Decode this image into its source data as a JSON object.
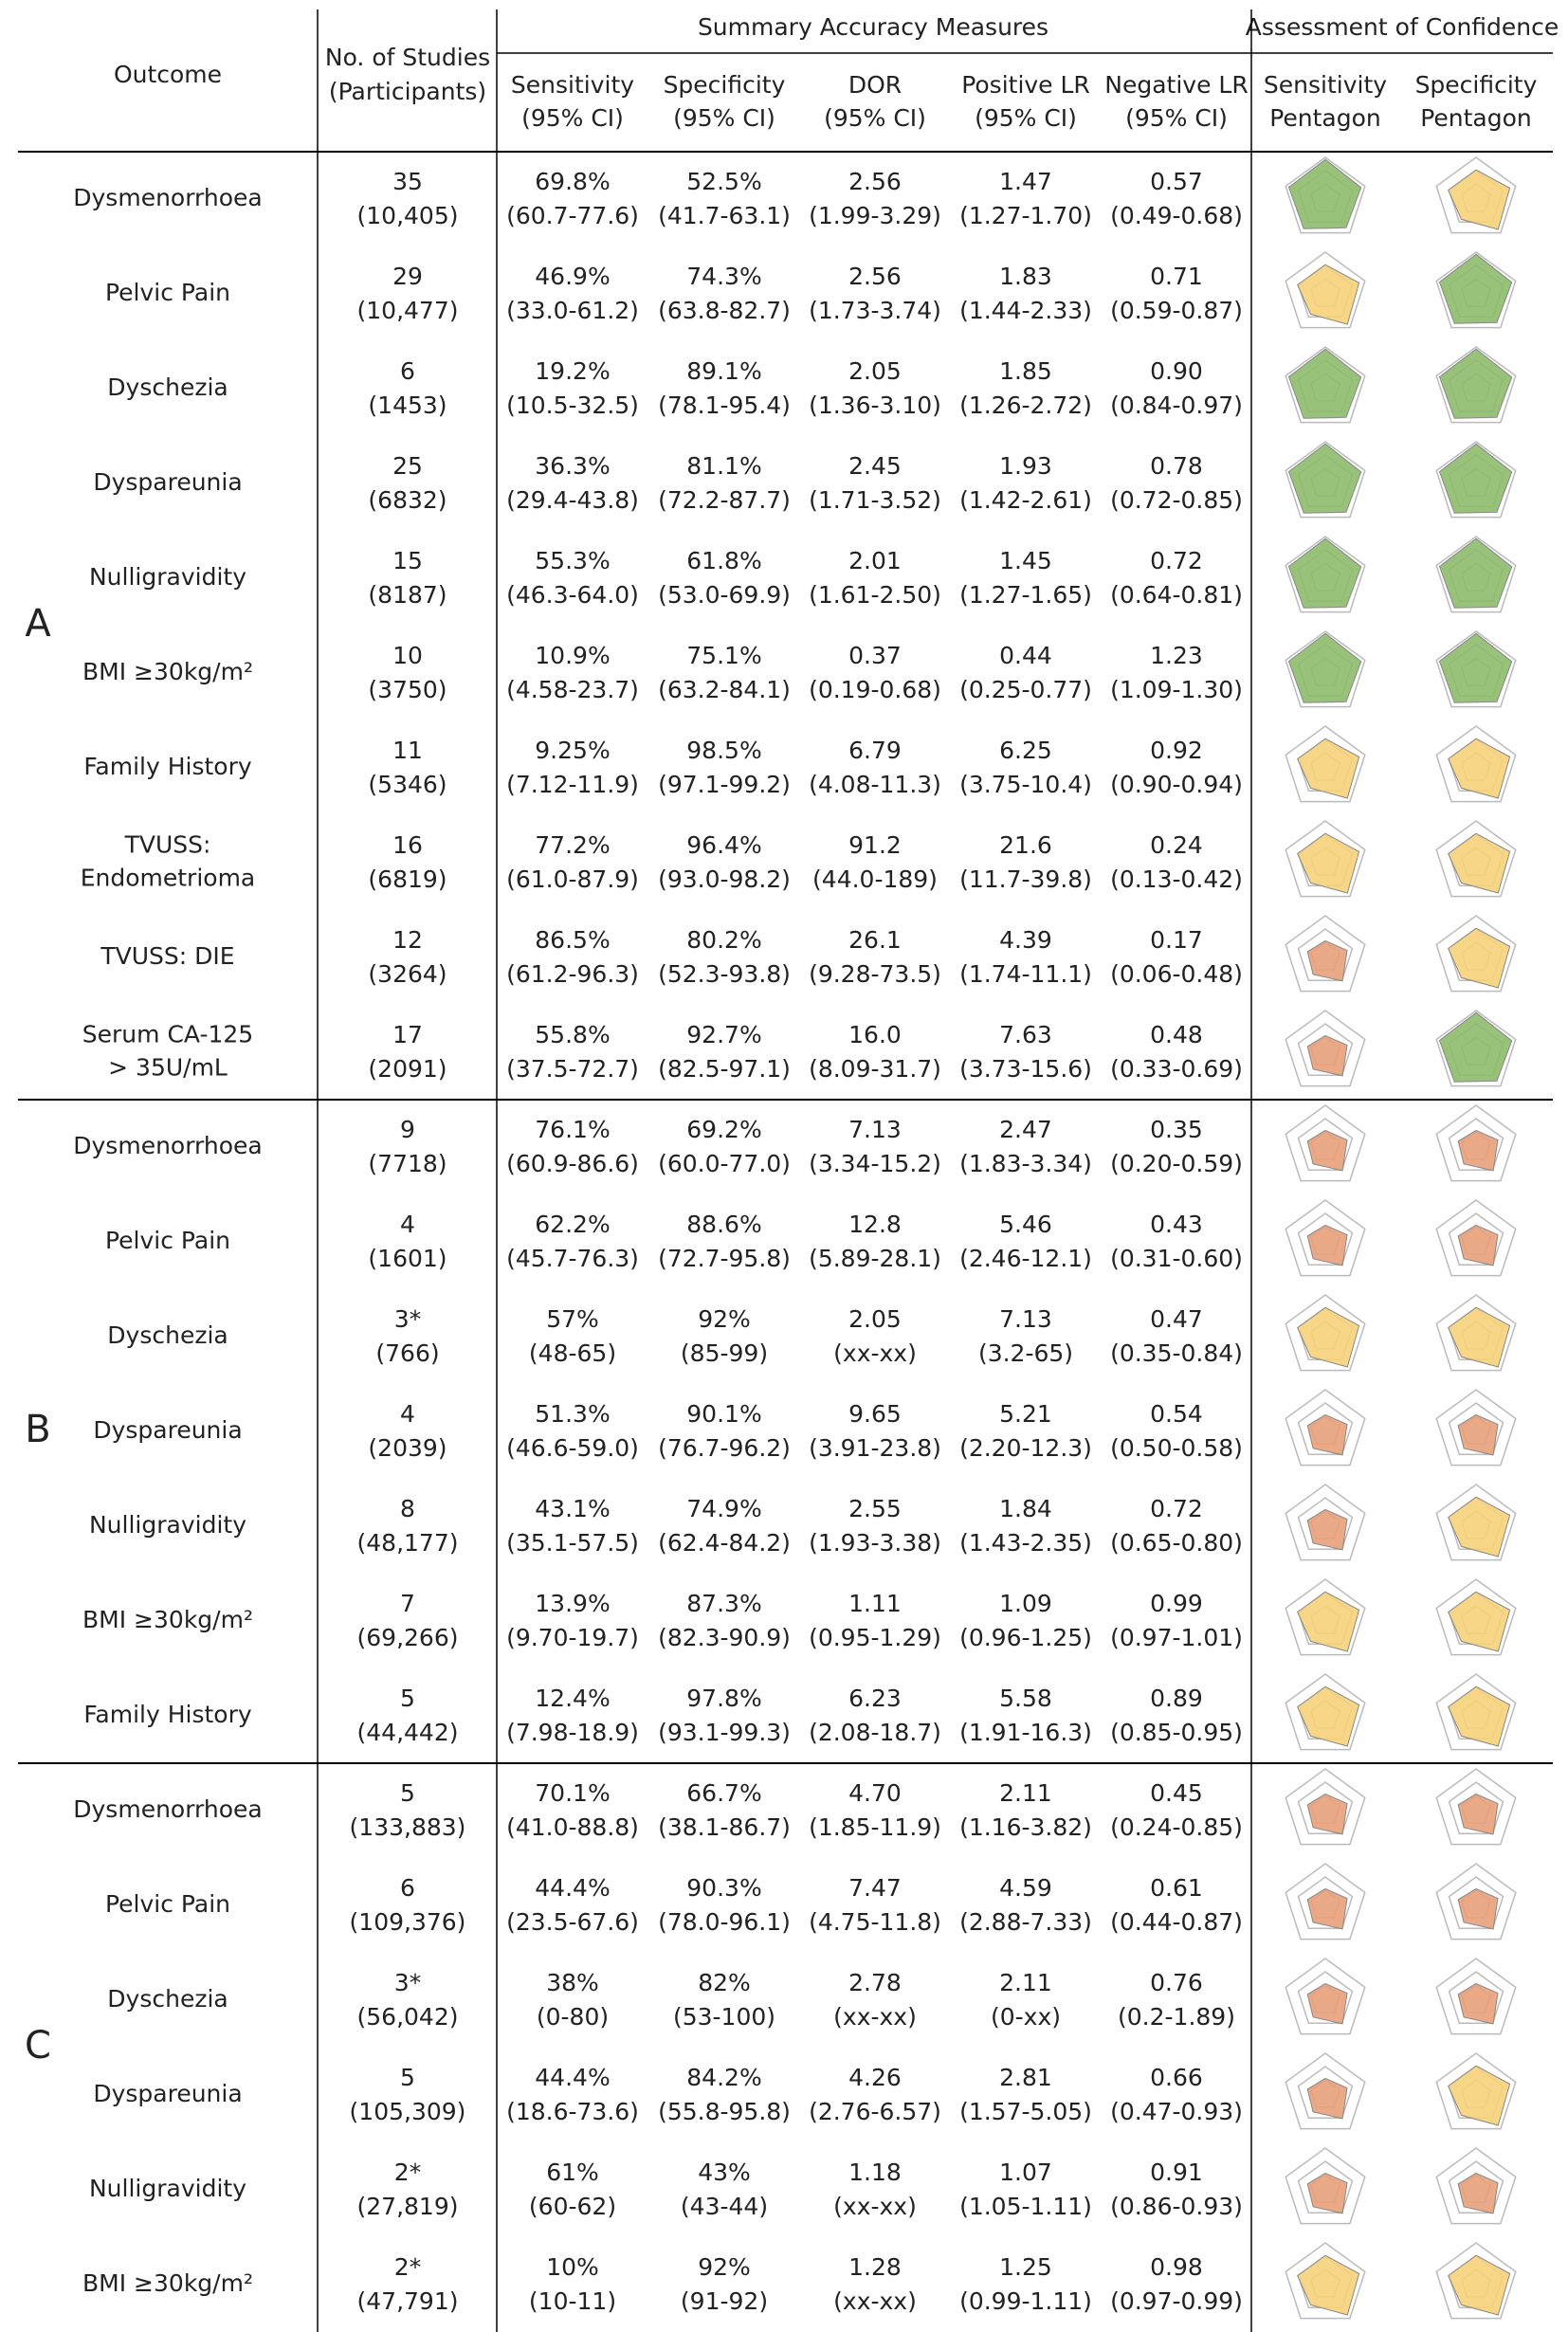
{
  "header": {
    "outcome": "Outcome",
    "studies": [
      "No. of Studies",
      "(Participants)"
    ],
    "summary": "Summary Accuracy Measures",
    "confidence": "Assessment of Confidence",
    "columns": [
      [
        "Sensitivity",
        "(95% CI)"
      ],
      [
        "Specificity",
        "(95% CI)"
      ],
      [
        "DOR",
        "(95% CI)"
      ],
      [
        "Positive LR",
        "(95% CI)"
      ],
      [
        "Negative LR",
        "(95% CI)"
      ],
      [
        "Sensitivity",
        "Pentagon"
      ],
      [
        "Specificity",
        "Pentagon"
      ]
    ]
  },
  "groups": [
    {
      "label": "A",
      "rows": [
        {
          "outcome": [
            "Dysmenorrhoea"
          ],
          "cells": [
            [
              "35",
              "(10,405)"
            ],
            [
              "69.8%",
              "(60.7-77.6)"
            ],
            [
              "52.5%",
              "(41.7-63.1)"
            ],
            [
              "2.56",
              "(1.99-3.29)"
            ],
            [
              "1.47",
              "(1.27-1.70)"
            ],
            [
              "0.57",
              "(0.49-0.68)"
            ]
          ],
          "pentagons": [
            "#8dba6a",
            "#f6d27a"
          ]
        },
        {
          "outcome": [
            "Pelvic Pain"
          ],
          "cells": [
            [
              "29",
              "(10,477)"
            ],
            [
              "46.9%",
              "(33.0-61.2)"
            ],
            [
              "74.3%",
              "(63.8-82.7)"
            ],
            [
              "2.56",
              "(1.73-3.74)"
            ],
            [
              "1.83",
              "(1.44-2.33)"
            ],
            [
              "0.71",
              "(0.59-0.87)"
            ]
          ],
          "pentagons": [
            "#f6d27a",
            "#8dba6a"
          ]
        },
        {
          "outcome": [
            "Dyschezia"
          ],
          "cells": [
            [
              "6",
              "(1453)"
            ],
            [
              "19.2%",
              "(10.5-32.5)"
            ],
            [
              "89.1%",
              "(78.1-95.4)"
            ],
            [
              "2.05",
              "(1.36-3.10)"
            ],
            [
              "1.85",
              "(1.26-2.72)"
            ],
            [
              "0.90",
              "(0.84-0.97)"
            ]
          ],
          "pentagons": [
            "#8dba6a",
            "#8dba6a"
          ]
        },
        {
          "outcome": [
            "Dyspareunia"
          ],
          "cells": [
            [
              "25",
              "(6832)"
            ],
            [
              "36.3%",
              "(29.4-43.8)"
            ],
            [
              "81.1%",
              "(72.2-87.7)"
            ],
            [
              "2.45",
              "(1.71-3.52)"
            ],
            [
              "1.93",
              "(1.42-2.61)"
            ],
            [
              "0.78",
              "(0.72-0.85)"
            ]
          ],
          "pentagons": [
            "#8dba6a",
            "#8dba6a"
          ]
        },
        {
          "outcome": [
            "Nulligravidity"
          ],
          "cells": [
            [
              "15",
              "(8187)"
            ],
            [
              "55.3%",
              "(46.3-64.0)"
            ],
            [
              "61.8%",
              "(53.0-69.9)"
            ],
            [
              "2.01",
              "(1.61-2.50)"
            ],
            [
              "1.45",
              "(1.27-1.65)"
            ],
            [
              "0.72",
              "(0.64-0.81)"
            ]
          ],
          "pentagons": [
            "#8dba6a",
            "#8dba6a"
          ]
        },
        {
          "outcome": [
            "BMI ≥30kg/m²"
          ],
          "cells": [
            [
              "10",
              "(3750)"
            ],
            [
              "10.9%",
              "(4.58-23.7)"
            ],
            [
              "75.1%",
              "(63.2-84.1)"
            ],
            [
              "0.37",
              "(0.19-0.68)"
            ],
            [
              "0.44",
              "(0.25-0.77)"
            ],
            [
              "1.23",
              "(1.09-1.30)"
            ]
          ],
          "pentagons": [
            "#8dba6a",
            "#8dba6a"
          ]
        },
        {
          "outcome": [
            "Family History"
          ],
          "cells": [
            [
              "11",
              "(5346)"
            ],
            [
              "9.25%",
              "(7.12-11.9)"
            ],
            [
              "98.5%",
              "(97.1-99.2)"
            ],
            [
              "6.79",
              "(4.08-11.3)"
            ],
            [
              "6.25",
              "(3.75-10.4)"
            ],
            [
              "0.92",
              "(0.90-0.94)"
            ]
          ],
          "pentagons": [
            "#f6d27a",
            "#f6d27a"
          ]
        },
        {
          "outcome": [
            "TVUSS:",
            "Endometrioma"
          ],
          "cells": [
            [
              "16",
              "(6819)"
            ],
            [
              "77.2%",
              "(61.0-87.9)"
            ],
            [
              "96.4%",
              "(93.0-98.2)"
            ],
            [
              "91.2",
              "(44.0-189)"
            ],
            [
              "21.6",
              "(11.7-39.8)"
            ],
            [
              "0.24",
              "(0.13-0.42)"
            ]
          ],
          "pentagons": [
            "#f6d27a",
            "#f6d27a"
          ]
        },
        {
          "outcome": [
            "TVUSS: DIE"
          ],
          "cells": [
            [
              "12",
              "(3264)"
            ],
            [
              "86.5%",
              "(61.2-96.3)"
            ],
            [
              "80.2%",
              "(52.3-93.8)"
            ],
            [
              "26.1",
              "(9.28-73.5)"
            ],
            [
              "4.39",
              "(1.74-11.1)"
            ],
            [
              "0.17",
              "(0.06-0.48)"
            ]
          ],
          "pentagons": [
            "#e8a07a",
            "#f6d27a"
          ]
        },
        {
          "outcome": [
            "Serum CA-125",
            "> 35U/mL"
          ],
          "cells": [
            [
              "17",
              "(2091)"
            ],
            [
              "55.8%",
              "(37.5-72.7)"
            ],
            [
              "92.7%",
              "(82.5-97.1)"
            ],
            [
              "16.0",
              "(8.09-31.7)"
            ],
            [
              "7.63",
              "(3.73-15.6)"
            ],
            [
              "0.48",
              "(0.33-0.69)"
            ]
          ],
          "pentagons": [
            "#e8a07a",
            "#8dba6a"
          ]
        }
      ]
    },
    {
      "label": "B",
      "rows": [
        {
          "outcome": [
            "Dysmenorrhoea"
          ],
          "cells": [
            [
              "9",
              "(7718)"
            ],
            [
              "76.1%",
              "(60.9-86.6)"
            ],
            [
              "69.2%",
              "(60.0-77.0)"
            ],
            [
              "7.13",
              "(3.34-15.2)"
            ],
            [
              "2.47",
              "(1.83-3.34)"
            ],
            [
              "0.35",
              "(0.20-0.59)"
            ]
          ],
          "pentagons": [
            "#e8a07a",
            "#e8a07a"
          ]
        },
        {
          "outcome": [
            "Pelvic Pain"
          ],
          "cells": [
            [
              "4",
              "(1601)"
            ],
            [
              "62.2%",
              "(45.7-76.3)"
            ],
            [
              "88.6%",
              "(72.7-95.8)"
            ],
            [
              "12.8",
              "(5.89-28.1)"
            ],
            [
              "5.46",
              "(2.46-12.1)"
            ],
            [
              "0.43",
              "(0.31-0.60)"
            ]
          ],
          "pentagons": [
            "#e8a07a",
            "#e8a07a"
          ]
        },
        {
          "outcome": [
            "Dyschezia"
          ],
          "cells": [
            [
              "3*",
              "(766)"
            ],
            [
              "57%",
              "(48-65)"
            ],
            [
              "92%",
              "(85-99)"
            ],
            [
              "2.05",
              "(xx-xx)"
            ],
            [
              "7.13",
              "(3.2-65)"
            ],
            [
              "0.47",
              "(0.35-0.84)"
            ]
          ],
          "pentagons": [
            "#f6d27a",
            "#f6d27a"
          ]
        },
        {
          "outcome": [
            "Dyspareunia"
          ],
          "cells": [
            [
              "4",
              "(2039)"
            ],
            [
              "51.3%",
              "(46.6-59.0)"
            ],
            [
              "90.1%",
              "(76.7-96.2)"
            ],
            [
              "9.65",
              "(3.91-23.8)"
            ],
            [
              "5.21",
              "(2.20-12.3)"
            ],
            [
              "0.54",
              "(0.50-0.58)"
            ]
          ],
          "pentagons": [
            "#e8a07a",
            "#e8a07a"
          ]
        },
        {
          "outcome": [
            "Nulligravidity"
          ],
          "cells": [
            [
              "8",
              "(48,177)"
            ],
            [
              "43.1%",
              "(35.1-57.5)"
            ],
            [
              "74.9%",
              "(62.4-84.2)"
            ],
            [
              "2.55",
              "(1.93-3.38)"
            ],
            [
              "1.84",
              "(1.43-2.35)"
            ],
            [
              "0.72",
              "(0.65-0.80)"
            ]
          ],
          "pentagons": [
            "#e8a07a",
            "#f6d27a"
          ]
        },
        {
          "outcome": [
            "BMI ≥30kg/m²"
          ],
          "cells": [
            [
              "7",
              "(69,266)"
            ],
            [
              "13.9%",
              "(9.70-19.7)"
            ],
            [
              "87.3%",
              "(82.3-90.9)"
            ],
            [
              "1.11",
              "(0.95-1.29)"
            ],
            [
              "1.09",
              "(0.96-1.25)"
            ],
            [
              "0.99",
              "(0.97-1.01)"
            ]
          ],
          "pentagons": [
            "#f6d27a",
            "#f6d27a"
          ]
        },
        {
          "outcome": [
            "Family History"
          ],
          "cells": [
            [
              "5",
              "(44,442)"
            ],
            [
              "12.4%",
              "(7.98-18.9)"
            ],
            [
              "97.8%",
              "(93.1-99.3)"
            ],
            [
              "6.23",
              "(2.08-18.7)"
            ],
            [
              "5.58",
              "(1.91-16.3)"
            ],
            [
              "0.89",
              "(0.85-0.95)"
            ]
          ],
          "pentagons": [
            "#f6d27a",
            "#f6d27a"
          ]
        }
      ]
    },
    {
      "label": "C",
      "rows": [
        {
          "outcome": [
            "Dysmenorrhoea"
          ],
          "cells": [
            [
              "5",
              "(133,883)"
            ],
            [
              "70.1%",
              "(41.0-88.8)"
            ],
            [
              "66.7%",
              "(38.1-86.7)"
            ],
            [
              "4.70",
              "(1.85-11.9)"
            ],
            [
              "2.11",
              "(1.16-3.82)"
            ],
            [
              "0.45",
              "(0.24-0.85)"
            ]
          ],
          "pentagons": [
            "#e8a07a",
            "#e8a07a"
          ]
        },
        {
          "outcome": [
            "Pelvic Pain"
          ],
          "cells": [
            [
              "6",
              "(109,376)"
            ],
            [
              "44.4%",
              "(23.5-67.6)"
            ],
            [
              "90.3%",
              "(78.0-96.1)"
            ],
            [
              "7.47",
              "(4.75-11.8)"
            ],
            [
              "4.59",
              "(2.88-7.33)"
            ],
            [
              "0.61",
              "(0.44-0.87)"
            ]
          ],
          "pentagons": [
            "#e8a07a",
            "#e8a07a"
          ]
        },
        {
          "outcome": [
            "Dyschezia"
          ],
          "cells": [
            [
              "3*",
              "(56,042)"
            ],
            [
              "38%",
              "(0-80)"
            ],
            [
              "82%",
              "(53-100)"
            ],
            [
              "2.78",
              "(xx-xx)"
            ],
            [
              "2.11",
              "(0-xx)"
            ],
            [
              "0.76",
              "(0.2-1.89)"
            ]
          ],
          "pentagons": [
            "#e8a07a",
            "#e8a07a"
          ]
        },
        {
          "outcome": [
            "Dyspareunia"
          ],
          "cells": [
            [
              "5",
              "(105,309)"
            ],
            [
              "44.4%",
              "(18.6-73.6)"
            ],
            [
              "84.2%",
              "(55.8-95.8)"
            ],
            [
              "4.26",
              "(2.76-6.57)"
            ],
            [
              "2.81",
              "(1.57-5.05)"
            ],
            [
              "0.66",
              "(0.47-0.93)"
            ]
          ],
          "pentagons": [
            "#e8a07a",
            "#f6d27a"
          ]
        },
        {
          "outcome": [
            "Nulligravidity"
          ],
          "cells": [
            [
              "2*",
              "(27,819)"
            ],
            [
              "61%",
              "(60-62)"
            ],
            [
              "43%",
              "(43-44)"
            ],
            [
              "1.18",
              "(xx-xx)"
            ],
            [
              "1.07",
              "(1.05-1.11)"
            ],
            [
              "0.91",
              "(0.86-0.93)"
            ]
          ],
          "pentagons": [
            "#e8a07a",
            "#e8a07a"
          ]
        },
        {
          "outcome": [
            "BMI ≥30kg/m²"
          ],
          "cells": [
            [
              "2*",
              "(47,791)"
            ],
            [
              "10%",
              "(10-11)"
            ],
            [
              "92%",
              "(91-92)"
            ],
            [
              "1.28",
              "(xx-xx)"
            ],
            [
              "1.25",
              "(0.99-1.11)"
            ],
            [
              "0.98",
              "(0.97-0.99)"
            ]
          ],
          "pentagons": [
            "#f6d27a",
            "#f6d27a"
          ]
        }
      ]
    }
  ]
}
